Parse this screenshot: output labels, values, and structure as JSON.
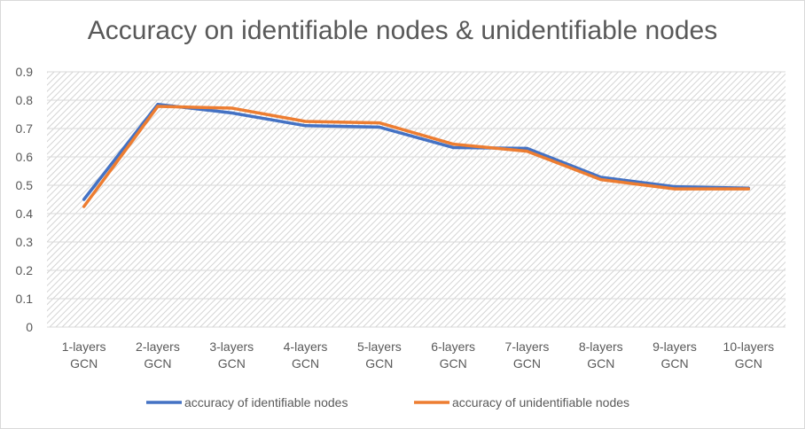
{
  "chart_data": {
    "type": "line",
    "title": "Accuracy on identifiable nodes & unidentifiable nodes",
    "xlabel": "",
    "ylabel": "",
    "categories": [
      [
        "1-layers",
        "GCN"
      ],
      [
        "2-layers",
        "GCN"
      ],
      [
        "3-layers",
        "GCN"
      ],
      [
        "4-layers",
        "GCN"
      ],
      [
        "5-layers",
        "GCN"
      ],
      [
        "6-layers",
        "GCN"
      ],
      [
        "7-layers",
        "GCN"
      ],
      [
        "8-layers",
        "GCN"
      ],
      [
        "9-layers",
        "GCN"
      ],
      [
        "10-layers",
        "GCN"
      ]
    ],
    "y_ticks": [
      "0",
      "0.1",
      "0.2",
      "0.3",
      "0.4",
      "0.5",
      "0.6",
      "0.7",
      "0.8",
      "0.9"
    ],
    "ylim": [
      0,
      0.9
    ],
    "grid": true,
    "legend_position": "bottom",
    "series": [
      {
        "name": "accuracy of identifiable nodes",
        "color": "#4472c4",
        "values": [
          0.45,
          0.785,
          0.755,
          0.71,
          0.705,
          0.633,
          0.63,
          0.528,
          0.495,
          0.49
        ]
      },
      {
        "name": "accuracy of unidentifiable nodes",
        "color": "#ed7d31",
        "values": [
          0.425,
          0.778,
          0.772,
          0.725,
          0.72,
          0.645,
          0.62,
          0.52,
          0.487,
          0.487
        ]
      }
    ]
  }
}
